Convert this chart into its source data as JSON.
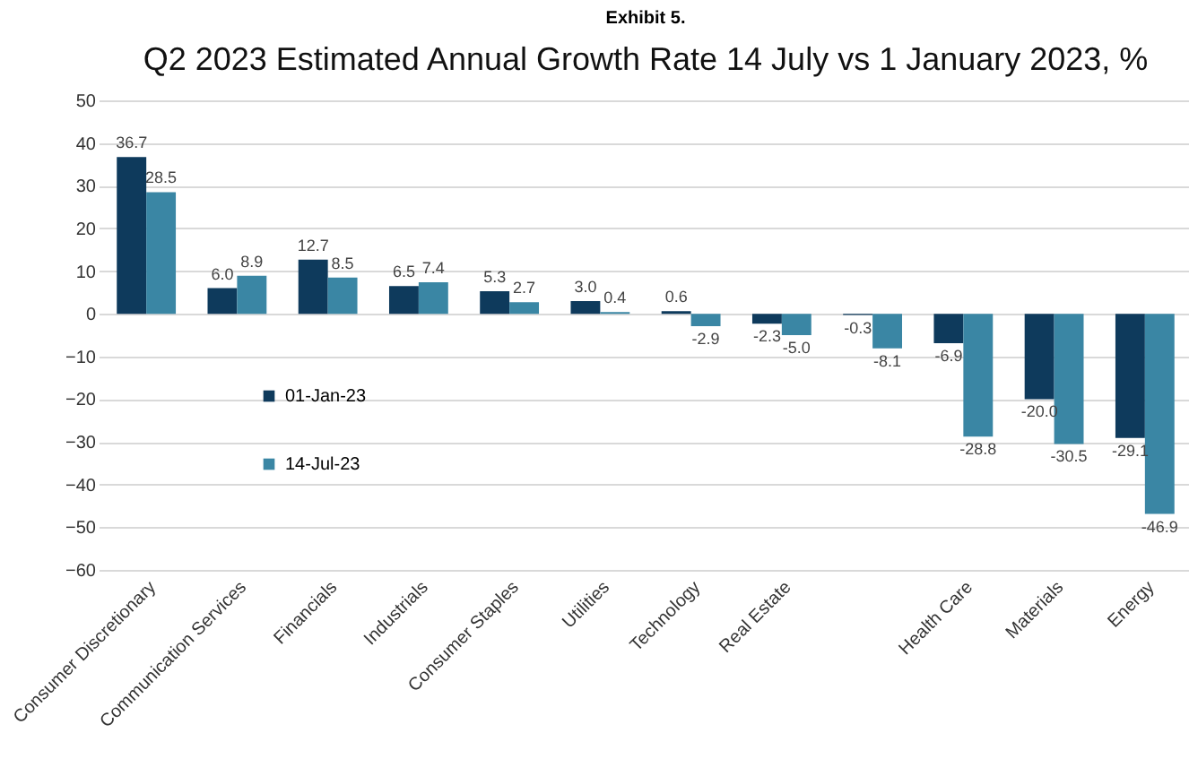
{
  "chart_data": {
    "type": "bar",
    "title": "Q2 2023 Estimated Annual Growth Rate 14 July vs 1 January 2023, %",
    "subtitle": "Exhibit 5.",
    "categories": [
      "Consumer Discretionary",
      "Communication Services",
      "Financials",
      "Industrials",
      "Consumer Staples",
      "Utilities",
      "Technology",
      "Real Estate",
      null,
      "Health Care",
      "Materials",
      "Energy"
    ],
    "series": [
      {
        "name": "01-Jan-23",
        "color": "#0e3a5c",
        "values": [
          36.7,
          6.0,
          12.7,
          6.5,
          5.3,
          3.0,
          0.6,
          -2.3,
          -0.3,
          -6.9,
          -20.0,
          -29.1
        ],
        "value_labels": [
          "36.7",
          "6.0",
          "12.7",
          "6.5",
          "5.3",
          "3.0",
          "0.6",
          "-2.3",
          "-0.3",
          "-6.9",
          "-20.0",
          "-29.1"
        ]
      },
      {
        "name": "14-Jul-23",
        "color": "#3a86a4",
        "values": [
          28.5,
          8.9,
          8.5,
          7.4,
          2.7,
          0.4,
          -2.9,
          -5.0,
          -8.1,
          -28.8,
          -30.5,
          -46.9
        ],
        "value_labels": [
          "28.5",
          "8.9",
          "8.5",
          "7.4",
          "2.7",
          "0.4",
          "-2.9",
          "-5.0",
          "-8.1",
          "-28.8",
          "-30.5",
          "-46.9"
        ]
      }
    ],
    "ylim": [
      -60,
      50
    ],
    "yticks": [
      -60,
      -50,
      -40,
      -30,
      -20,
      -10,
      0,
      10,
      20,
      30,
      40,
      50
    ],
    "grid": "y",
    "legend": "left"
  }
}
